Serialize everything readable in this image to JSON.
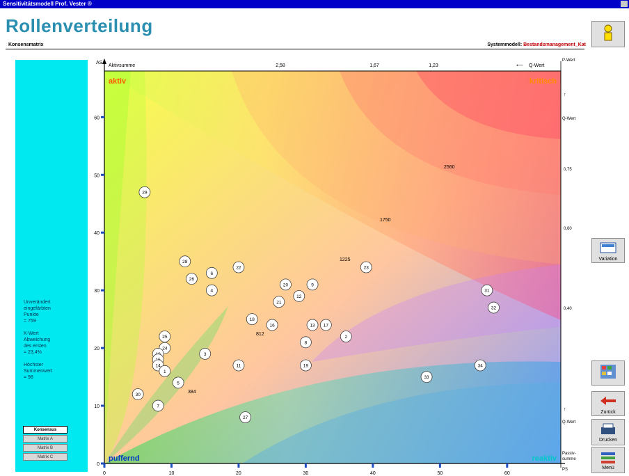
{
  "window": {
    "title": "Sensitivitätsmodell Prof. Vester ®"
  },
  "header": {
    "title": "Rollenverteilung",
    "left_subtitle": "Konsensmatrix",
    "system_label": "Systemmodell:",
    "system_value": "Bestandsmanagement_Kat"
  },
  "stats": {
    "lines": [
      "Unverändert",
      "eingefärbten",
      "Punkte",
      "= 759",
      "",
      "K-Wert",
      "Abweichung",
      "des ersten",
      "= 23,4%",
      "",
      "Höchster",
      "Summenwert",
      "= 98"
    ]
  },
  "switches": [
    {
      "label": "Konsensus",
      "active": true
    },
    {
      "label": "Matrix A",
      "active": false
    },
    {
      "label": "Matrix B",
      "active": false
    },
    {
      "label": "Matrix C",
      "active": false
    }
  ],
  "sidebar": {
    "help_icon": "person-icon",
    "buttons": [
      {
        "label": "Variation",
        "icon": "variation-icon"
      },
      {
        "label": "",
        "icon": "grid-icon"
      },
      {
        "label": "Zurück",
        "icon": "back-arrow-icon"
      },
      {
        "label": "Drucken",
        "icon": "printer-icon"
      },
      {
        "label": "Menü",
        "icon": "menu-icon"
      }
    ]
  },
  "chart": {
    "top_axis_label": "Aktivsumme",
    "top_ticks": [
      "2,58",
      "1,67",
      "1,23"
    ],
    "top_arrow_label": "Q-Wert",
    "corner_label_tr": "P-Wert",
    "left_axis_label": "AS",
    "right_top_label": "Q-Wert",
    "right_bottom_label": "Q-Wert",
    "right_ticks": [
      "0,75",
      "0,60",
      "0,40"
    ],
    "bottom_right_label_1": "Passiv-",
    "bottom_right_label_2": "summe",
    "bottom_right_label_3": "PS",
    "corner_aktiv": "aktiv",
    "corner_kritisch": "kritisch",
    "corner_puffernd": "puffernd",
    "corner_reaktiv": "reaktiv",
    "curve_labels": [
      "2560",
      "1750",
      "1225",
      "812",
      "384"
    ],
    "colors": {
      "active": "#ff5a00",
      "critical": "#ff8c00",
      "buffer": "#0038c8",
      "reactive": "#00c8c8"
    }
  },
  "chart_data": {
    "type": "scatter",
    "xlabel": "PS",
    "ylabel": "AS",
    "xlim": [
      0,
      68
    ],
    "ylim": [
      0,
      68
    ],
    "x_ticks": [
      0,
      10,
      20,
      30,
      40,
      50,
      60
    ],
    "y_ticks": [
      0,
      10,
      20,
      30,
      40,
      50,
      60
    ],
    "points": [
      {
        "label": "29",
        "x": 6,
        "y": 47
      },
      {
        "label": "28",
        "x": 12,
        "y": 35
      },
      {
        "label": "26",
        "x": 13,
        "y": 32
      },
      {
        "label": "6",
        "x": 16,
        "y": 33
      },
      {
        "label": "4",
        "x": 16,
        "y": 30
      },
      {
        "label": "22",
        "x": 20,
        "y": 34
      },
      {
        "label": "20",
        "x": 27,
        "y": 31
      },
      {
        "label": "9",
        "x": 31,
        "y": 31
      },
      {
        "label": "12",
        "x": 29,
        "y": 29
      },
      {
        "label": "21",
        "x": 26,
        "y": 28
      },
      {
        "label": "23",
        "x": 39,
        "y": 34
      },
      {
        "label": "18",
        "x": 22,
        "y": 25
      },
      {
        "label": "16",
        "x": 25,
        "y": 24
      },
      {
        "label": "13",
        "x": 31,
        "y": 24
      },
      {
        "label": "17",
        "x": 33,
        "y": 24
      },
      {
        "label": "8",
        "x": 30,
        "y": 21
      },
      {
        "label": "2",
        "x": 36,
        "y": 22
      },
      {
        "label": "25",
        "x": 9,
        "y": 22
      },
      {
        "label": "24",
        "x": 9,
        "y": 20
      },
      {
        "label": "10",
        "x": 8,
        "y": 19
      },
      {
        "label": "15",
        "x": 8,
        "y": 18
      },
      {
        "label": "14",
        "x": 8,
        "y": 17
      },
      {
        "label": "1",
        "x": 9,
        "y": 16
      },
      {
        "label": "3",
        "x": 15,
        "y": 19
      },
      {
        "label": "11",
        "x": 20,
        "y": 17
      },
      {
        "label": "19",
        "x": 30,
        "y": 17
      },
      {
        "label": "5",
        "x": 11,
        "y": 14
      },
      {
        "label": "30",
        "x": 5,
        "y": 12
      },
      {
        "label": "7",
        "x": 8,
        "y": 10
      },
      {
        "label": "27",
        "x": 21,
        "y": 8
      },
      {
        "label": "33",
        "x": 48,
        "y": 15
      },
      {
        "label": "34",
        "x": 56,
        "y": 17
      },
      {
        "label": "31",
        "x": 57,
        "y": 30
      },
      {
        "label": "32",
        "x": 58,
        "y": 27
      }
    ]
  }
}
